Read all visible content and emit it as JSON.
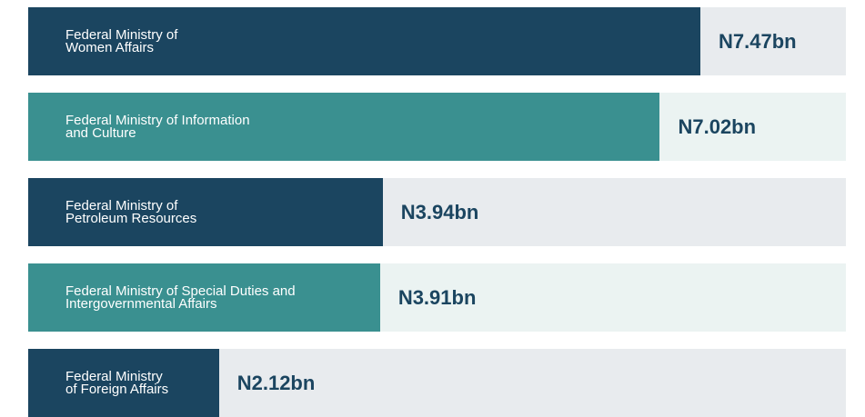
{
  "chart_data": {
    "type": "bar",
    "orientation": "horizontal",
    "categories": [
      "Federal Ministry of\nWomen Affairs",
      "Federal Ministry of Information\nand Culture",
      "Federal Ministry of\nPetroleum Resources",
      "Federal Ministry of Special Duties and\nIntergovernmental Affairs",
      "Federal Ministry\nof Foreign Affairs"
    ],
    "values": [
      7.47,
      7.02,
      3.94,
      3.91,
      2.12
    ],
    "value_labels": [
      "N7.47bn",
      "N7.02bn",
      "N3.94bn",
      "N3.91bn",
      "N2.12bn"
    ],
    "colors": [
      "#1b4560",
      "#3a9090",
      "#1b4560",
      "#3a9090",
      "#1b4560"
    ],
    "track_colors": [
      "#e8ebee",
      "#ebf3f2",
      "#e8ebee",
      "#ebf3f2",
      "#e8ebee"
    ]
  }
}
